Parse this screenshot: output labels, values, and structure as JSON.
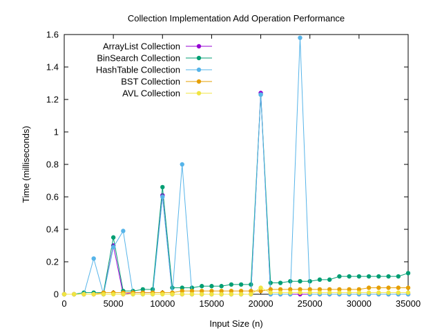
{
  "chart_data": {
    "type": "line",
    "title": "Collection Implementation Add Operation Performance",
    "xlabel": "Input Size (n)",
    "ylabel": "Time (milliseconds)",
    "xlim": [
      0,
      35000
    ],
    "ylim": [
      0,
      1.6
    ],
    "x_ticks": [
      "0",
      "5000",
      "10000",
      "15000",
      "20000",
      "25000",
      "30000",
      "35000"
    ],
    "x_tick_values": [
      0,
      5000,
      10000,
      15000,
      20000,
      25000,
      30000,
      35000
    ],
    "y_ticks": [
      "0",
      "0.2",
      "0.4",
      "0.6",
      "0.8",
      "1",
      "1.2",
      "1.4",
      "1.6"
    ],
    "y_tick_values": [
      0,
      0.2,
      0.4,
      0.6,
      0.8,
      1.0,
      1.2,
      1.4,
      1.6
    ],
    "grid": false,
    "legend_position": "top-left",
    "x": [
      0,
      1000,
      2000,
      3000,
      4000,
      5000,
      6000,
      7000,
      8000,
      9000,
      10000,
      11000,
      12000,
      13000,
      14000,
      15000,
      16000,
      17000,
      18000,
      19000,
      20000,
      21000,
      22000,
      23000,
      24000,
      25000,
      26000,
      27000,
      28000,
      29000,
      30000,
      31000,
      32000,
      33000,
      34000,
      35000
    ],
    "series": [
      {
        "name": "ArrayList Collection",
        "color": "#9400d3",
        "values": [
          0,
          0,
          0,
          0,
          0,
          0.3,
          0,
          0.01,
          0.01,
          0.01,
          0.61,
          0,
          0,
          0,
          0,
          0,
          0,
          0,
          0,
          0,
          1.24,
          0,
          0,
          0,
          0,
          0,
          0,
          0,
          0,
          0,
          0,
          0,
          0,
          0,
          0,
          0
        ]
      },
      {
        "name": "BinSearch Collection",
        "color": "#009e73",
        "values": [
          0,
          0,
          0.01,
          0.01,
          0.01,
          0.35,
          0.02,
          0.02,
          0.03,
          0.03,
          0.66,
          0.04,
          0.04,
          0.04,
          0.05,
          0.05,
          0.05,
          0.06,
          0.06,
          0.06,
          1.23,
          0.07,
          0.07,
          0.08,
          0.08,
          0.08,
          0.09,
          0.09,
          0.11,
          0.11,
          0.11,
          0.11,
          0.11,
          0.11,
          0.11,
          0.13
        ]
      },
      {
        "name": "HashTable Collection",
        "color": "#56b4e9",
        "values": [
          0,
          0,
          0,
          0.22,
          0,
          0.29,
          0.39,
          0,
          0,
          0,
          0.6,
          0,
          0.8,
          0,
          0,
          0,
          0,
          0,
          0,
          0,
          1.23,
          0,
          0,
          0,
          1.58,
          0,
          0,
          0,
          0,
          0,
          0,
          0,
          0,
          0,
          0,
          0
        ]
      },
      {
        "name": "BST Collection",
        "color": "#e69f00",
        "values": [
          0,
          0,
          0,
          0,
          0.01,
          0.01,
          0.01,
          0.01,
          0.01,
          0.01,
          0.01,
          0.01,
          0.02,
          0.02,
          0.02,
          0.02,
          0.02,
          0.02,
          0.02,
          0.02,
          0.02,
          0.03,
          0.03,
          0.03,
          0.03,
          0.03,
          0.03,
          0.03,
          0.03,
          0.03,
          0.03,
          0.04,
          0.04,
          0.04,
          0.04,
          0.04
        ]
      },
      {
        "name": "AVL Collection",
        "color": "#f0e442",
        "values": [
          0,
          0,
          0,
          0,
          0,
          0,
          0,
          0,
          0,
          0,
          0,
          0,
          0,
          0,
          0,
          0,
          0,
          0,
          0,
          0,
          0.04,
          0.01,
          0.01,
          0.01,
          0.01,
          0.01,
          0.01,
          0.01,
          0.01,
          0.01,
          0.01,
          0.01,
          0.01,
          0.01,
          0.01,
          0.01
        ]
      }
    ]
  }
}
